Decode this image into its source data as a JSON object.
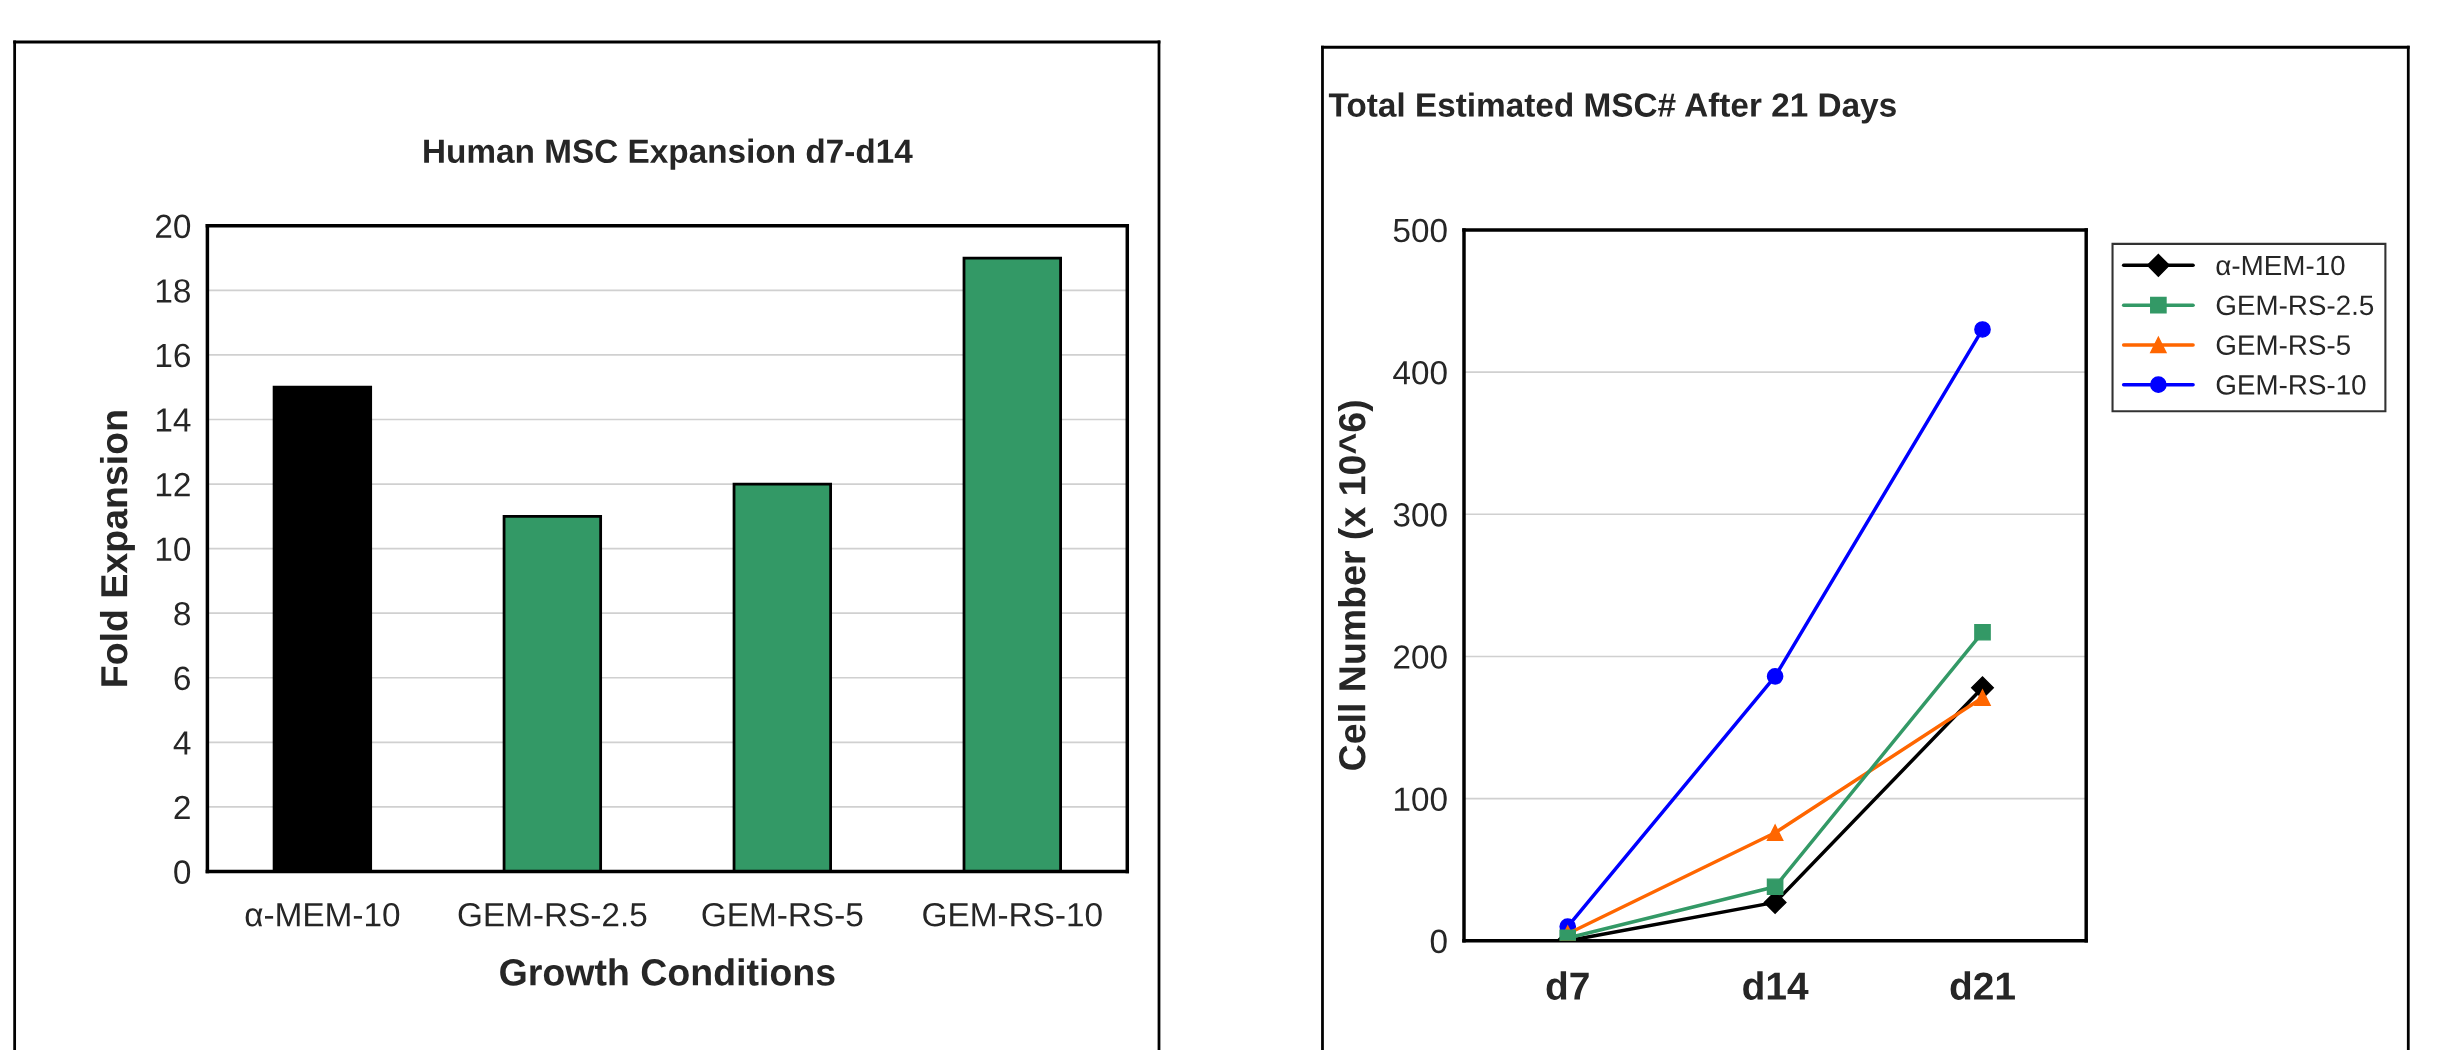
{
  "chart_data": [
    {
      "type": "bar",
      "title": "Human MSC Expansion d7-d14",
      "xlabel": "Growth Conditions",
      "ylabel": "Fold Expansion",
      "categories": [
        "α-MEM-10",
        "GEM-RS-2.5",
        "GEM-RS-5",
        "GEM-RS-10"
      ],
      "values": [
        15,
        11,
        12,
        19
      ],
      "colors": [
        "#000000",
        "#339966",
        "#339966",
        "#339966"
      ],
      "ylim": [
        0,
        20
      ],
      "yticks": [
        0,
        2,
        4,
        6,
        8,
        10,
        12,
        14,
        16,
        18,
        20
      ],
      "grid": "y"
    },
    {
      "type": "line",
      "title": "Total Estimated MSC# After 21 Days",
      "ylabel": "Cell Number (x 10^6)",
      "categories": [
        "d7",
        "d14",
        "d21"
      ],
      "series": [
        {
          "name": "α-MEM-10",
          "color": "#000000",
          "marker": "diamond",
          "values": [
            0,
            27,
            178
          ]
        },
        {
          "name": "GEM-RS-2.5",
          "color": "#339966",
          "marker": "square",
          "values": [
            2,
            38,
            217
          ]
        },
        {
          "name": "GEM-RS-5",
          "color": "#ff6600",
          "marker": "triangle",
          "values": [
            5,
            76,
            171
          ]
        },
        {
          "name": "GEM-RS-10",
          "color": "#0000ff",
          "marker": "circle",
          "values": [
            10,
            186,
            430
          ]
        }
      ],
      "ylim": [
        0,
        500
      ],
      "yticks": [
        0,
        100,
        200,
        300,
        400,
        500
      ],
      "grid": "y",
      "legend": "right"
    }
  ]
}
